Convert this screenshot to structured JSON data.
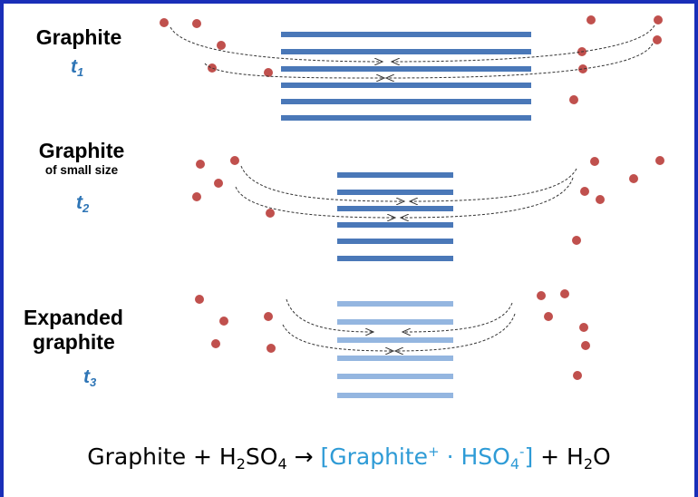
{
  "colors": {
    "frame": "#1a2fb8",
    "layer_dark": "#4a78b8",
    "layer_light": "#94b6e0",
    "ion": "#c0504d",
    "time_label": "#2e75b6",
    "product": "#2e9bd6"
  },
  "stages": [
    {
      "title_line1": "Graphite",
      "time_label": "t",
      "time_sub": "1",
      "layer_style": "dark",
      "layer_count": 6
    },
    {
      "title_line1": "Graphite",
      "title_line2": "of small size",
      "time_label": "t",
      "time_sub": "2",
      "layer_style": "dark",
      "layer_count": 6
    },
    {
      "title_line1": "Expanded",
      "title_line2": "graphite",
      "time_label": "t",
      "time_sub": "3",
      "layer_style": "light",
      "layer_count": 6
    }
  ],
  "equation": {
    "reactant1": "Graphite + H",
    "r_sub1": "2",
    "r_mid": "SO",
    "r_sub2": "4",
    "arrow": " → ",
    "product_open": "[Graphite",
    "product_sup1": "+",
    "product_dot": " · HSO",
    "product_sub": "4",
    "product_sup2": "-",
    "product_close": "]",
    "plus_water": " + H",
    "water_sub": "2",
    "water_o": "O"
  }
}
